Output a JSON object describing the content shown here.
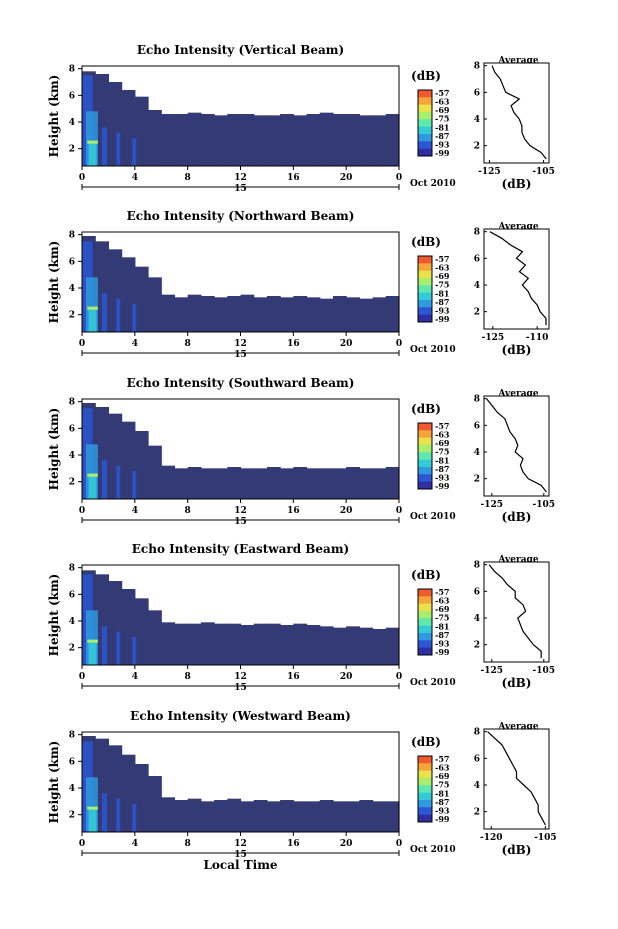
{
  "chart_data": [
    {
      "type": "heatmap",
      "title": "Echo Intensity (Vertical Beam)",
      "ylabel": "Height (km)",
      "xlabel": "",
      "x_ticks": [
        "0",
        "4",
        "8",
        "12",
        "16",
        "20",
        "0"
      ],
      "date_marker": "15",
      "date_suffix": "Oct 2010",
      "y_ticks": [
        "2",
        "4",
        "6",
        "8"
      ],
      "ylim": [
        0.7,
        8.2
      ],
      "xlim": [
        0,
        24
      ],
      "colorbar_unit": "(dB)",
      "colorbar_ticks": [
        "-57",
        "-63",
        "-69",
        "-75",
        "-81",
        "-87",
        "-93",
        "-99"
      ],
      "echo_top_km": [
        7.8,
        7.6,
        7.0,
        6.4,
        5.9,
        4.9,
        4.6,
        4.6,
        4.7,
        4.6,
        4.5,
        4.6,
        4.6,
        4.5,
        4.5,
        4.6,
        4.5,
        4.6,
        4.7,
        4.6,
        4.6,
        4.5,
        4.5,
        4.6
      ],
      "average_profile": {
        "title": "Average",
        "xlabel": "(dB)",
        "x_ticks": [
          "-125",
          "-105"
        ],
        "xlim": [
          -127,
          -103
        ],
        "y_ticks": [
          "2",
          "4",
          "6",
          "8"
        ],
        "ylim": [
          0.7,
          8.2
        ],
        "height_km": [
          1,
          1.5,
          2,
          2.5,
          3,
          3.5,
          4,
          4.5,
          5,
          5.5,
          6,
          6.5,
          7,
          7.5,
          8
        ],
        "db": [
          -104,
          -106,
          -110,
          -112,
          -113,
          -113,
          -114,
          -116,
          -117,
          -114,
          -119,
          -120,
          -121,
          -123,
          -124
        ]
      }
    },
    {
      "type": "heatmap",
      "title": "Echo Intensity (Northward Beam)",
      "ylabel": "Height (km)",
      "xlabel": "",
      "x_ticks": [
        "0",
        "4",
        "8",
        "12",
        "16",
        "20",
        "0"
      ],
      "date_marker": "15",
      "date_suffix": "Oct 2010",
      "y_ticks": [
        "2",
        "4",
        "6",
        "8"
      ],
      "ylim": [
        0.7,
        8.2
      ],
      "xlim": [
        0,
        24
      ],
      "colorbar_unit": "(dB)",
      "colorbar_ticks": [
        "-57",
        "-63",
        "-69",
        "-75",
        "-81",
        "-87",
        "-93",
        "-99"
      ],
      "echo_top_km": [
        7.9,
        7.5,
        6.9,
        6.3,
        5.6,
        4.8,
        3.5,
        3.3,
        3.5,
        3.4,
        3.3,
        3.4,
        3.5,
        3.3,
        3.4,
        3.3,
        3.4,
        3.3,
        3.2,
        3.4,
        3.3,
        3.2,
        3.3,
        3.4
      ],
      "average_profile": {
        "title": "Average",
        "xlabel": "(dB)",
        "x_ticks": [
          "-125",
          "-110"
        ],
        "xlim": [
          -128,
          -106
        ],
        "y_ticks": [
          "2",
          "4",
          "6",
          "8"
        ],
        "ylim": [
          0.7,
          8.2
        ],
        "height_km": [
          1,
          1.5,
          2,
          2.5,
          3,
          3.5,
          4,
          4.5,
          5,
          5.5,
          6,
          6.5,
          7,
          7.5,
          8
        ],
        "db": [
          -107,
          -107,
          -109,
          -110,
          -112,
          -113,
          -115,
          -113,
          -116,
          -114,
          -117,
          -115,
          -119,
          -122,
          -126
        ]
      }
    },
    {
      "type": "heatmap",
      "title": "Echo Intensity (Southward Beam)",
      "ylabel": "Height (km)",
      "xlabel": "",
      "x_ticks": [
        "0",
        "4",
        "8",
        "12",
        "16",
        "20",
        "0"
      ],
      "date_marker": "15",
      "date_suffix": "Oct 2010",
      "y_ticks": [
        "2",
        "4",
        "6",
        "8"
      ],
      "ylim": [
        0.7,
        8.2
      ],
      "xlim": [
        0,
        24
      ],
      "colorbar_unit": "(dB)",
      "colorbar_ticks": [
        "-57",
        "-63",
        "-69",
        "-75",
        "-81",
        "-87",
        "-93",
        "-99"
      ],
      "echo_top_km": [
        7.9,
        7.6,
        7.1,
        6.5,
        5.8,
        4.7,
        3.2,
        3.0,
        3.1,
        3.0,
        3.0,
        3.1,
        3.0,
        3.0,
        3.1,
        3.0,
        3.1,
        3.0,
        3.0,
        3.0,
        3.1,
        3.0,
        3.0,
        3.1
      ],
      "average_profile": {
        "title": "Average",
        "xlabel": "(dB)",
        "x_ticks": [
          "-125",
          "-105"
        ],
        "xlim": [
          -128,
          -103
        ],
        "y_ticks": [
          "2",
          "4",
          "6",
          "8"
        ],
        "ylim": [
          0.7,
          8.2
        ],
        "height_km": [
          1,
          1.5,
          2,
          2.5,
          3,
          3.5,
          4,
          4.5,
          5,
          5.5,
          6,
          6.5,
          7,
          7.5,
          8
        ],
        "db": [
          -104,
          -106,
          -111,
          -113,
          -114,
          -113,
          -116,
          -115,
          -116,
          -118,
          -119,
          -120,
          -123,
          -125,
          -127
        ]
      }
    },
    {
      "type": "heatmap",
      "title": "Echo Intensity (Eastward Beam)",
      "ylabel": "Height (km)",
      "xlabel": "",
      "x_ticks": [
        "0",
        "4",
        "8",
        "12",
        "16",
        "20",
        "0"
      ],
      "date_marker": "15",
      "date_suffix": "Oct 2010",
      "y_ticks": [
        "2",
        "4",
        "6",
        "8"
      ],
      "ylim": [
        0.7,
        8.2
      ],
      "xlim": [
        0,
        24
      ],
      "colorbar_unit": "(dB)",
      "colorbar_ticks": [
        "-57",
        "-63",
        "-69",
        "-75",
        "-81",
        "-87",
        "-93",
        "-99"
      ],
      "echo_top_km": [
        7.8,
        7.5,
        7.0,
        6.4,
        5.7,
        4.8,
        3.9,
        3.8,
        3.8,
        3.9,
        3.8,
        3.8,
        3.7,
        3.8,
        3.8,
        3.7,
        3.8,
        3.7,
        3.6,
        3.5,
        3.6,
        3.5,
        3.4,
        3.5
      ],
      "average_profile": {
        "title": "Average",
        "xlabel": "(dB)",
        "x_ticks": [
          "-125",
          "-105"
        ],
        "xlim": [
          -128,
          -103
        ],
        "y_ticks": [
          "2",
          "4",
          "6",
          "8"
        ],
        "ylim": [
          0.7,
          8.2
        ],
        "height_km": [
          1,
          1.5,
          2,
          2.5,
          3,
          3.5,
          4,
          4.5,
          5,
          5.5,
          6,
          6.5,
          7,
          7.5,
          8
        ],
        "db": [
          -106,
          -106,
          -109,
          -111,
          -113,
          -114,
          -115,
          -112,
          -113,
          -116,
          -116,
          -119,
          -121,
          -124,
          -126
        ]
      }
    },
    {
      "type": "heatmap",
      "title": "Echo Intensity (Westward Beam)",
      "ylabel": "Height (km)",
      "xlabel": "Local Time",
      "x_ticks": [
        "0",
        "4",
        "8",
        "12",
        "16",
        "20",
        "0"
      ],
      "date_marker": "15",
      "date_suffix": "Oct 2010",
      "y_ticks": [
        "2",
        "4",
        "6",
        "8"
      ],
      "ylim": [
        0.7,
        8.2
      ],
      "xlim": [
        0,
        24
      ],
      "colorbar_unit": "(dB)",
      "colorbar_ticks": [
        "-57",
        "-63",
        "-69",
        "-75",
        "-81",
        "-87",
        "-93",
        "-99"
      ],
      "echo_top_km": [
        7.9,
        7.7,
        7.2,
        6.5,
        5.8,
        4.9,
        3.3,
        3.1,
        3.2,
        3.0,
        3.1,
        3.2,
        3.0,
        3.1,
        3.0,
        3.1,
        3.0,
        3.0,
        3.1,
        3.0,
        3.0,
        3.1,
        3.0,
        3.0
      ],
      "average_profile": {
        "title": "Average",
        "xlabel": "(dB)",
        "x_ticks": [
          "-120",
          "-105"
        ],
        "xlim": [
          -122,
          -104
        ],
        "y_ticks": [
          "2",
          "4",
          "6",
          "8"
        ],
        "ylim": [
          0.7,
          8.2
        ],
        "height_km": [
          1,
          1.5,
          2,
          2.5,
          3,
          3.5,
          4,
          4.5,
          5,
          5.5,
          6,
          6.5,
          7,
          7.5,
          8
        ],
        "db": [
          -105,
          -106,
          -107,
          -107,
          -108,
          -109,
          -111,
          -113,
          -113,
          -114,
          -115,
          -116,
          -117,
          -119,
          -121
        ]
      }
    }
  ],
  "colors": {
    "background_echo": "#333a75",
    "colormap": [
      "#2f2ea3",
      "#2c56d4",
      "#2f9ae0",
      "#33ccd6",
      "#5fe8b0",
      "#a9ef6e",
      "#e9e24c",
      "#f6a53a",
      "#ef5a2f"
    ]
  }
}
